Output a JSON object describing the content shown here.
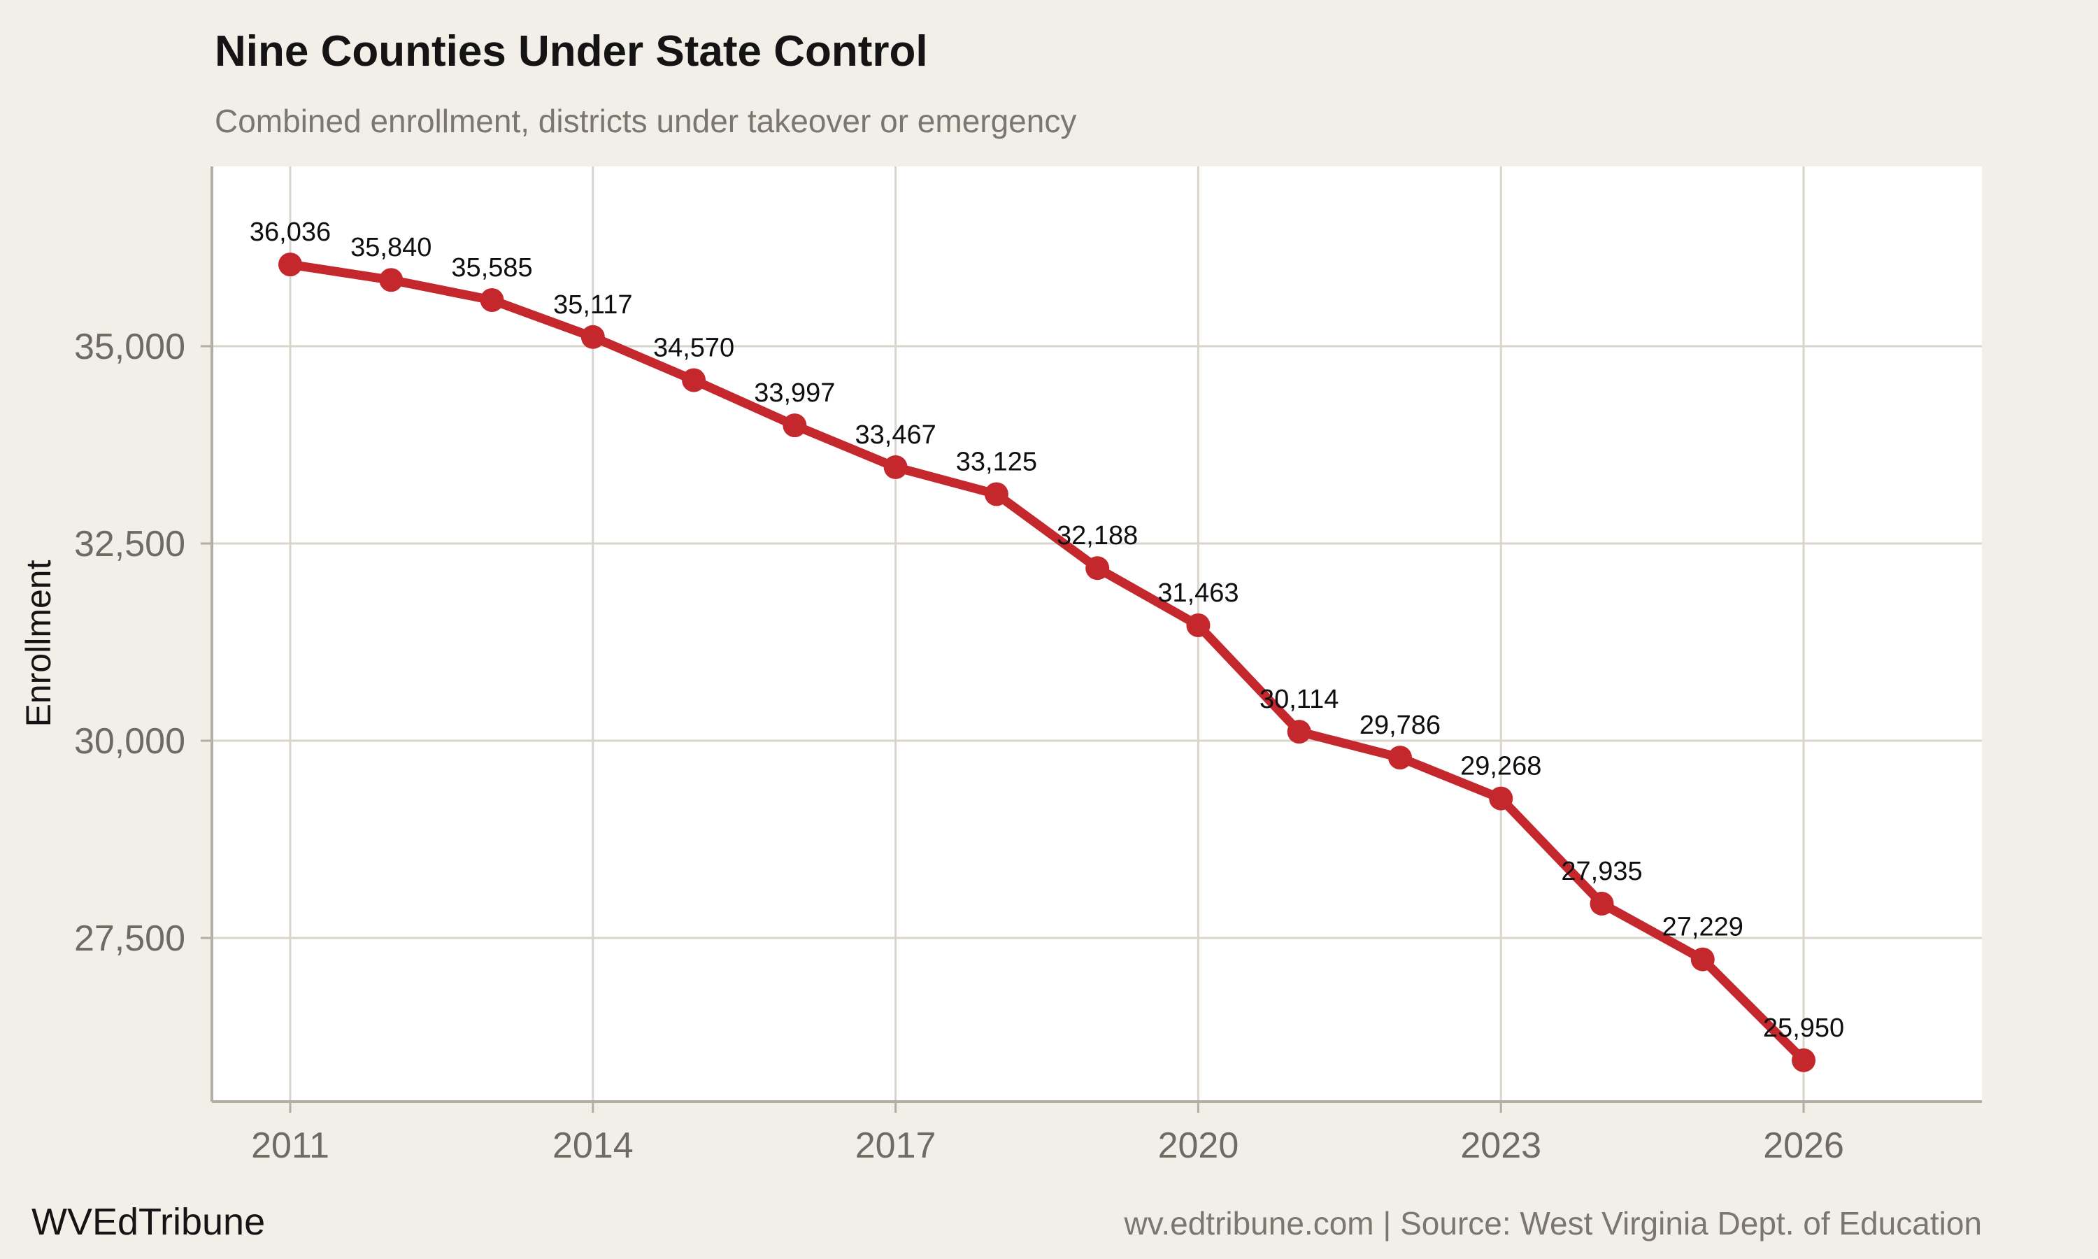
{
  "header": {
    "title": "Nine Counties Under State Control",
    "subtitle": "Combined enrollment, districts under takeover or emergency"
  },
  "footer": {
    "brand": "WVEdTribune",
    "source": "wv.edtribune.com | Source: West Virginia Dept. of Education"
  },
  "colors": {
    "page_bg": "#f2efe9",
    "panel_bg": "#ffffff",
    "gridline": "#d9d5cc",
    "axis": "#b3ada3",
    "tick_label": "#6f6a63",
    "muted": "#7b766f",
    "title": "#141414",
    "line": "#c5282c",
    "point": "#c5282c",
    "data_label": "#0f0f0f"
  },
  "chart_data": {
    "type": "line",
    "title": "Nine Counties Under State Control",
    "subtitle": "Combined enrollment, districts under takeover or emergency",
    "xlabel": "",
    "ylabel": "Enrollment",
    "x": [
      2011,
      2012,
      2013,
      2014,
      2015,
      2016,
      2017,
      2018,
      2019,
      2020,
      2021,
      2022,
      2023,
      2024,
      2025,
      2026
    ],
    "series": [
      {
        "name": "Combined enrollment",
        "values": [
          36036,
          35840,
          35585,
          35117,
          34570,
          33997,
          33467,
          33125,
          32188,
          31463,
          30114,
          29786,
          29268,
          27935,
          27229,
          25950
        ]
      }
    ],
    "point_labels": [
      "36,036",
      "35,840",
      "35,585",
      "35,117",
      "34,570",
      "33,997",
      "33,467",
      "33,125",
      "32,188",
      "31,463",
      "30,114",
      "29,786",
      "29,268",
      "27,935",
      "27,229",
      "25,950"
    ],
    "x_ticks": {
      "values": [
        2011,
        2014,
        2017,
        2020,
        2023,
        2026
      ],
      "labels": [
        "2011",
        "2014",
        "2017",
        "2020",
        "2023",
        "2026"
      ]
    },
    "y_ticks": {
      "values": [
        35000,
        32500,
        30000,
        27500
      ],
      "labels": [
        "35,000",
        "32,500",
        "30,000",
        "27,500"
      ]
    },
    "xlim": [
      2010.22,
      2027.77
    ],
    "ylim": [
      25430,
      37280
    ],
    "grid": true,
    "legend": "none"
  }
}
